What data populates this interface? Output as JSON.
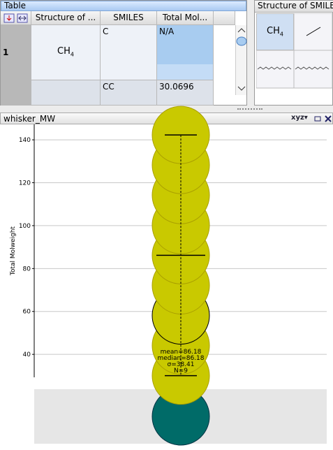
{
  "table_panel": {
    "title": "Table",
    "columns": [
      "Structure of ...",
      "SMILES",
      "Total Mol..."
    ],
    "rows": [
      {
        "label": "1",
        "formula": {
          "base": "CH",
          "sub": "4"
        },
        "smiles": "C",
        "mw": "N/A"
      },
      {
        "smiles": "CC",
        "mw": "30.0696"
      }
    ]
  },
  "structure_panel": {
    "title": "Structure of SMILE",
    "cells": [
      {
        "base": "CH",
        "sub": "4"
      }
    ]
  },
  "chart_data": {
    "type": "strip",
    "panel_title": "whisker_MW",
    "menu_label": "xyz",
    "y_label": "Total Molweight",
    "values": [
      null,
      30.07,
      44.1,
      58.12,
      72.15,
      86.18,
      100.2,
      114.23,
      128.26,
      142.28
    ],
    "color": "#c9c900",
    "missing_color": "#006b68",
    "highlight_index": 3,
    "ylim": [
      29.3,
      147.2
    ],
    "yticks": [
      40,
      60,
      80,
      100,
      120,
      140
    ],
    "grid": true,
    "whisker": {
      "min": 30.07,
      "mean": 86.18,
      "max": 142.28
    },
    "stats_labels": [
      "mean=86.18",
      "median=86.18",
      "σ=38.41",
      "N=9"
    ]
  }
}
